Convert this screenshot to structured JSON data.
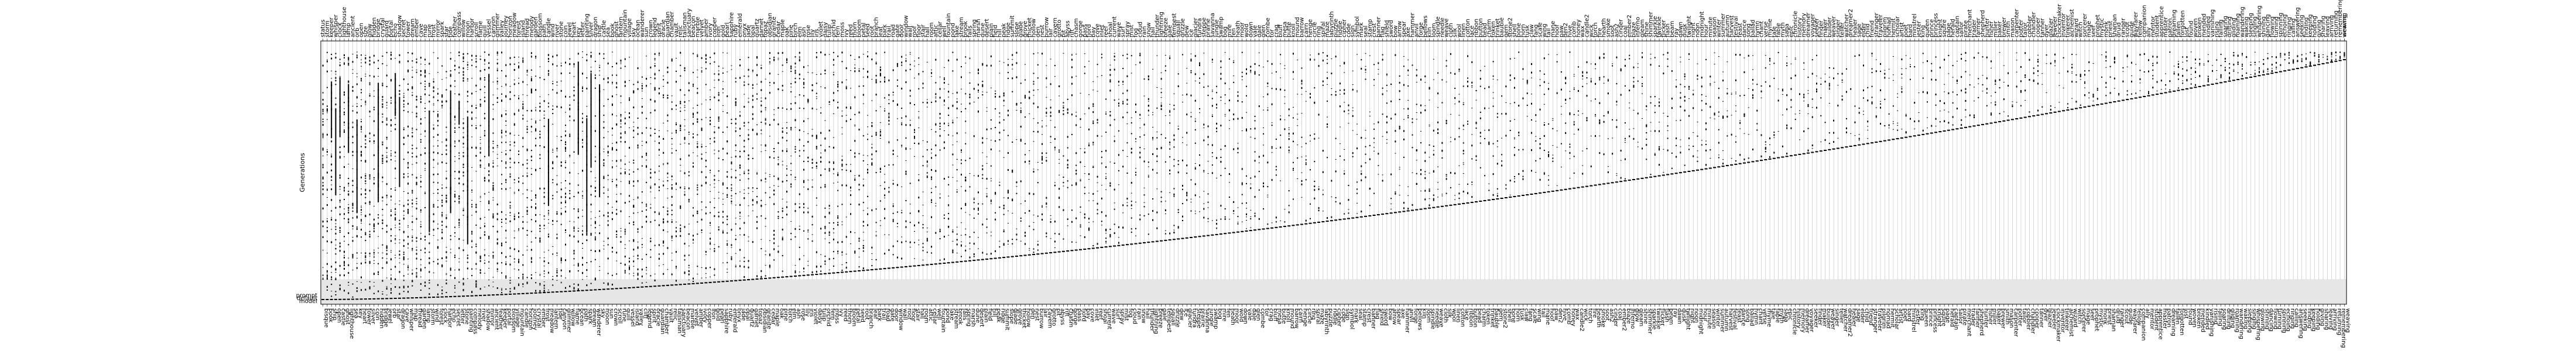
{
  "chart_data": {
    "type": "heatmap",
    "ylabel": "Generations",
    "xlabel": "",
    "title": "",
    "grid": true,
    "bottom_tick_labels": [
      "bisque",
      "book",
      "ship",
      "open",
      "castle",
      "ghost",
      "lighthouse",
      "sea",
      "key",
      "heart",
      "tower",
      "silver",
      "coin",
      "hidden",
      "bridge",
      "jewel",
      "orb",
      "star",
      "dragon",
      "cave",
      "whisper",
      "map",
      "thread",
      "garden",
      "lamp",
      "storm",
      "wind",
      "forest",
      "clock",
      "harbor",
      "echo",
      "secret",
      "letter",
      "stone",
      "painting",
      "compass",
      "melody",
      "river",
      "shadow",
      "mirror",
      "ancient",
      "feather",
      "keeper",
      "portal",
      "blossom",
      "village",
      "mountain",
      "candle",
      "horizon",
      "journey",
      "crystal",
      "ember",
      "frost",
      "meadow",
      "lantern",
      "tide",
      "canyon",
      "glimmer",
      "willow",
      "flame",
      "ocean",
      "path",
      "spark",
      "dream",
      "wanderer",
      "sky",
      "moon",
      "sun",
      "crown",
      "scroll",
      "rune",
      "quill",
      "vessel",
      "island",
      "valley",
      "cliff",
      "legend",
      "spirit",
      "oracle",
      "guardian",
      "chamber",
      "vault",
      "relic",
      "talisman",
      "sanctuary",
      "beacon",
      "marble",
      "velvet",
      "amber",
      "ivory",
      "copper",
      "iron",
      "gold",
      "pearl",
      "sapphire",
      "ruby",
      "emerald",
      "onyx",
      "jade",
      "opal",
      "quartz",
      "garnet",
      "topaz",
      "obsidian",
      "granite",
      "cedar",
      "maple",
      "oak",
      "pine",
      "birch",
      "elm",
      "ash",
      "rose",
      "lily",
      "iris",
      "violet",
      "daisy",
      "tulip",
      "orchid",
      "fern",
      "moss",
      "ivy",
      "reed",
      "thorn",
      "bloom",
      "petal",
      "seed",
      "root",
      "branch",
      "leaf",
      "bark",
      "trail",
      "road",
      "gate",
      "door",
      "window",
      "wall",
      "roof",
      "floor",
      "stair",
      "hall",
      "room",
      "attic",
      "cellar",
      "well",
      "fountain",
      "pond",
      "lake",
      "stream",
      "brook",
      "falls",
      "spring",
      "marsh",
      "dune",
      "desert",
      "plain",
      "field",
      "hill",
      "peak",
      "ridge",
      "summit",
      "slope",
      "glade",
      "grove",
      "thicket",
      "hollow",
      "den",
      "nest",
      "burrow",
      "lair",
      "cavern",
      "grotto",
      "pit",
      "abyss",
      "rift",
      "chasm",
      "gorge",
      "pass",
      "fjord",
      "bay",
      "cove",
      "inlet",
      "reef",
      "shoal",
      "current",
      "wave",
      "surf",
      "spray",
      "mist",
      "fog",
      "cloud",
      "rain",
      "snow",
      "hail",
      "thunder",
      "lightning",
      "breeze",
      "gale",
      "tempest",
      "squall",
      "drizzle",
      "dew",
      "ice",
      "glacier",
      "tundra",
      "steppe",
      "prairie",
      "savanna",
      "jungle",
      "swamp",
      "bog",
      "mire",
      "fen",
      "heath",
      "moor",
      "wold",
      "down",
      "vale",
      "dale",
      "glen",
      "combe",
      "tor",
      "crag",
      "bluff",
      "mesa",
      "butte",
      "knoll",
      "mound",
      "barrow",
      "cairn",
      "henge",
      "circle",
      "ring",
      "spiral",
      "maze",
      "labyrinth",
      "puzzle",
      "riddle",
      "cipher",
      "code",
      "sign",
      "symbol",
      "mark",
      "seal",
      "stamp",
      "crest",
      "banner",
      "flag",
      "shield",
      "sword",
      "bow",
      "arrow",
      "spear",
      "axe",
      "hammer",
      "anvil",
      "forge",
      "bellows",
      "kiln",
      "loom",
      "spindle",
      "needle",
      "weave",
      "cloth",
      "silk",
      "wool",
      "linen",
      "cotton",
      "lace",
      "ribbon",
      "button",
      "bead",
      "charm",
      "token",
      "trinket",
      "bauble",
      "gem",
      "stone2",
      "shell",
      "bone",
      "horn",
      "tusk",
      "claw",
      "fang",
      "scale",
      "wing",
      "tail",
      "mane",
      "hoof",
      "paw",
      "den2",
      "hive",
      "comb",
      "honey",
      "wax",
      "candle2",
      "wick",
      "torch",
      "fire",
      "hearth",
      "smoke",
      "soot",
      "ash2",
      "cinder",
      "coal",
      "ember2",
      "blaze",
      "inferno",
      "glow",
      "gleam",
      "shine",
      "shimmer",
      "sparkle",
      "twinkle",
      "flicker",
      "flash",
      "beam",
      "ray",
      "dawn",
      "dusk",
      "twilight",
      "night",
      "noon",
      "midnight",
      "hour",
      "minute",
      "season",
      "winter",
      "summer",
      "autumn",
      "harvest",
      "festival",
      "feast",
      "dance",
      "song",
      "ballad",
      "hymn",
      "chant",
      "verse",
      "rhyme",
      "tale",
      "fable",
      "myth",
      "saga",
      "epic",
      "chronicle",
      "history",
      "memory",
      "dreamer",
      "voyager",
      "seeker",
      "finder",
      "maker",
      "builder",
      "weaver",
      "singer",
      "teller",
      "watcher",
      "dreamer2",
      "healer",
      "sage",
      "elder",
      "child",
      "friend",
      "stranger",
      "traveler",
      "pilgrim",
      "nomad",
      "hermit",
      "scholar",
      "artist",
      "poet",
      "bard",
      "minstrel",
      "jester",
      "king",
      "queen",
      "prince",
      "princess",
      "knight",
      "squire",
      "page",
      "herald",
      "captain",
      "sailor",
      "pirate",
      "merchant",
      "trader",
      "farmer",
      "shepherd",
      "hunter",
      "fisher",
      "miller",
      "baker",
      "brewer",
      "smith",
      "mason",
      "carpenter",
      "potter",
      "tailor",
      "cobbler",
      "chandler",
      "cooper",
      "tanner",
      "dyer",
      "glazier",
      "jeweler",
      "clockmaker",
      "inventor",
      "tinkerer",
      "alchemist",
      "wizard",
      "witch",
      "sorcerer",
      "mage",
      "seer",
      "prophet",
      "mystic",
      "monk",
      "priest",
      "shaman",
      "druid",
      "ranger",
      "scout",
      "guide",
      "wayfarer",
      "fellow",
      "companion",
      "ally",
      "mentor",
      "student",
      "apprentice",
      "master",
      "patron",
      "dreaming",
      "fallen",
      "forgotten",
      "lost",
      "found",
      "woven",
      "broken",
      "mended",
      "kindled",
      "vanishing",
      "rising",
      "falling",
      "soaring",
      "drifting",
      "gliding",
      "roaming",
      "wandering",
      "waking",
      "sleeping",
      "singing",
      "whispering",
      "glowing",
      "shining",
      "dancing",
      "flowing",
      "turning",
      "spinning",
      "echoing",
      "ringing",
      "calling",
      "answering",
      "seeking",
      "finding",
      "keeping",
      "holding",
      "giving",
      "sharing",
      "leaving",
      "arriving",
      "returning",
      "remembering",
      "weaving"
    ],
    "top_tick_labels": [
      "status",
      "storm",
      "keeper",
      "whisper",
      "clock",
      "lighthouse",
      "lamp",
      "ancient",
      "orb",
      "open",
      "size",
      "glow",
      "hidden",
      "bridge",
      "crystal",
      "guard",
      "portal",
      "echo",
      "shadow",
      "secret",
      "tower",
      "dream",
      "ember",
      "cave",
      "map",
      "rune",
      "frost",
      "mirror",
      "spark",
      "star",
      "tide",
      "feather",
      "compass",
      "willow",
      "moon",
      "harbor",
      "scroll",
      "flame",
      "quill",
      "vessel",
      "canyon",
      "glimmer",
      "valley",
      "journey",
      "horizon",
      "meadow",
      "forest",
      "island",
      "thread",
      "melody",
      "garden",
      "blossom",
      "path",
      "candle",
      "wind",
      "river",
      "stone",
      "coin",
      "jewel",
      "heart",
      "key",
      "letter",
      "painting",
      "silver",
      "dragon",
      "ship",
      "castle",
      "sea",
      "book",
      "ghost",
      "lantern",
      "mountain",
      "village",
      "sky",
      "ocean",
      "wanderer",
      "sun",
      "crown",
      "legend",
      "spirit",
      "oracle",
      "guardian",
      "chamber",
      "vault",
      "relic",
      "talisman",
      "sanctuary",
      "beacon",
      "marble",
      "velvet",
      "amber",
      "ivory",
      "copper",
      "iron",
      "gold",
      "pearl",
      "sapphire",
      "ruby",
      "emerald",
      "onyx",
      "jade",
      "opal",
      "quartz",
      "garnet",
      "topaz",
      "obsidian",
      "granite",
      "cedar",
      "maple",
      "oak",
      "pine",
      "birch",
      "elm",
      "ash",
      "rose",
      "lily",
      "iris",
      "violet",
      "daisy",
      "tulip",
      "orchid",
      "fern",
      "moss",
      "ivy",
      "reed",
      "thorn",
      "bloom",
      "petal",
      "seed",
      "root",
      "branch",
      "leaf",
      "bark",
      "trail",
      "road",
      "gate",
      "door",
      "window",
      "wall",
      "roof",
      "floor",
      "stair",
      "hall",
      "room",
      "attic",
      "cellar",
      "well",
      "fountain",
      "pond",
      "lake",
      "stream",
      "brook",
      "falls",
      "spring",
      "marsh",
      "dune",
      "desert",
      "plain",
      "field",
      "hill",
      "peak",
      "ridge",
      "summit",
      "slope",
      "glade",
      "grove",
      "thicket",
      "hollow",
      "den",
      "nest",
      "burrow",
      "lair",
      "cavern",
      "grotto",
      "pit",
      "abyss",
      "rift",
      "chasm",
      "gorge",
      "pass",
      "fjord",
      "bay",
      "cove",
      "inlet",
      "reef",
      "shoal",
      "current",
      "wave",
      "surf",
      "spray",
      "mist",
      "fog",
      "cloud",
      "rain",
      "snow",
      "hail",
      "thunder",
      "lightning",
      "breeze",
      "gale",
      "tempest",
      "squall",
      "drizzle",
      "dew",
      "ice",
      "glacier",
      "tundra",
      "steppe",
      "prairie",
      "savanna",
      "jungle",
      "swamp",
      "bog",
      "mire",
      "fen",
      "heath",
      "moor",
      "wold",
      "down",
      "vale",
      "dale",
      "glen",
      "combe",
      "tor",
      "crag",
      "bluff",
      "mesa",
      "butte",
      "knoll",
      "mound",
      "barrow",
      "cairn",
      "henge",
      "circle",
      "ring",
      "spiral",
      "maze",
      "labyrinth",
      "puzzle",
      "riddle",
      "cipher",
      "code",
      "sign",
      "symbol",
      "mark",
      "seal",
      "stamp",
      "crest",
      "banner",
      "flag",
      "shield",
      "sword",
      "bow",
      "arrow",
      "spear",
      "axe",
      "hammer",
      "anvil",
      "forge",
      "bellows",
      "kiln",
      "loom",
      "spindle",
      "needle",
      "weave",
      "cloth",
      "silk",
      "wool",
      "linen",
      "cotton",
      "lace",
      "ribbon",
      "button",
      "bead",
      "charm",
      "token",
      "trinket",
      "bauble",
      "gem",
      "stone2",
      "shell",
      "bone",
      "horn",
      "tusk",
      "claw",
      "fang",
      "scale",
      "wing",
      "tail",
      "mane",
      "hoof",
      "paw",
      "den2",
      "hive",
      "comb",
      "honey",
      "wax",
      "candle2",
      "wick",
      "torch",
      "fire",
      "hearth",
      "smoke",
      "soot",
      "ash2",
      "cinder",
      "coal",
      "ember2",
      "blaze",
      "inferno",
      "gleam",
      "shine",
      "shimmer",
      "sparkle",
      "twinkle",
      "flicker",
      "flash",
      "beam",
      "ray",
      "dawn",
      "dusk",
      "twilight",
      "night",
      "noon",
      "midnight",
      "hour",
      "minute",
      "season",
      "winter",
      "summer",
      "autumn",
      "harvest",
      "festival",
      "feast",
      "dance",
      "song",
      "ballad",
      "hymn",
      "chant",
      "verse",
      "rhyme",
      "tale",
      "fable",
      "myth",
      "saga",
      "epic",
      "chronicle",
      "history",
      "memory",
      "dreamer",
      "voyager",
      "seeker",
      "finder",
      "maker",
      "builder",
      "weaver",
      "singer",
      "teller",
      "watcher",
      "dreamer2",
      "healer",
      "sage",
      "elder",
      "child",
      "friend",
      "stranger",
      "traveler",
      "pilgrim",
      "nomad",
      "hermit",
      "scholar",
      "artist",
      "poet",
      "bard",
      "minstrel",
      "jester",
      "king",
      "queen",
      "prince",
      "princess",
      "knight",
      "squire",
      "page",
      "herald",
      "captain",
      "sailor",
      "pirate",
      "merchant",
      "trader",
      "farmer",
      "shepherd",
      "hunter",
      "fisher",
      "miller",
      "baker",
      "brewer",
      "smith",
      "mason",
      "carpenter",
      "potter",
      "tailor",
      "cobbler",
      "chandler",
      "cooper",
      "tanner",
      "dyer",
      "glazier",
      "jeweler",
      "clockmaker",
      "inventor",
      "tinkerer",
      "alchemist",
      "wizard",
      "witch",
      "sorcerer",
      "mage",
      "seer",
      "prophet",
      "mystic",
      "monk",
      "priest",
      "shaman",
      "druid",
      "ranger",
      "scout",
      "guide",
      "wayfarer",
      "fellow",
      "companion",
      "ally",
      "mentor",
      "student",
      "apprentice",
      "master",
      "patron",
      "dreaming",
      "fallen",
      "forgotten",
      "lost",
      "found",
      "woven",
      "broken",
      "mended",
      "kindled",
      "vanishing",
      "rising",
      "falling",
      "soaring",
      "drifting",
      "gliding",
      "roaming",
      "wandering",
      "waking",
      "sleeping",
      "singing",
      "whispering",
      "shining",
      "dancing",
      "flowing",
      "turning",
      "spinning",
      "echoing",
      "ringing",
      "calling",
      "answering",
      "seeking",
      "finding",
      "keeping",
      "holding",
      "giving",
      "sharing",
      "leaving",
      "arriving",
      "returning",
      "remembering",
      "weaving",
      "viewing"
    ],
    "y_tick_labels": [
      "prompt",
      "default",
      "model"
    ],
    "colors": {
      "cell": "#000000",
      "gridline": "#bbbbbb",
      "axes": "#000000",
      "band": "#e6e6e6"
    }
  }
}
